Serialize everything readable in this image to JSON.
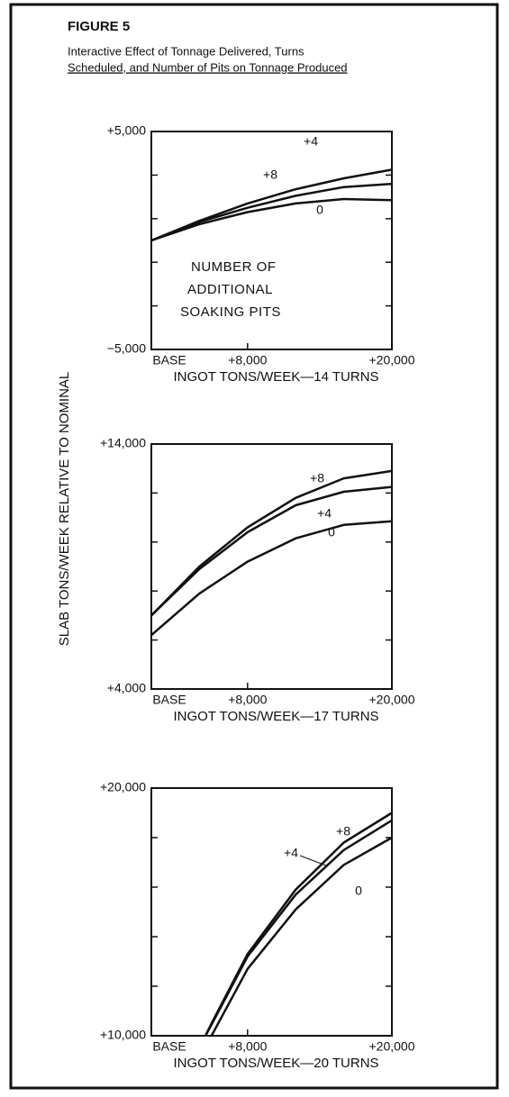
{
  "header": {
    "figure": "FIGURE 5",
    "title_lines": [
      "Interactive Effect of Tonnage Delivered, Turns",
      "Scheduled, and Number of Pits on Tonnage Produced"
    ]
  },
  "ylabel": "SLAB TONS/WEEK RELATIVE TO NOMINAL",
  "chart_data": [
    {
      "type": "line",
      "xlabel": "INGOT TONS/WEEK—14 TURNS",
      "x": [
        0,
        4000,
        8000,
        12000,
        16000,
        20000
      ],
      "xlim": [
        0,
        20000
      ],
      "xticks": [
        {
          "value": 0,
          "label": "BASE"
        },
        {
          "value": 8000,
          "label": "+8,000"
        },
        {
          "value": 20000,
          "label": "+20,000"
        }
      ],
      "ylim": [
        -5000,
        5000
      ],
      "yticks": [
        {
          "value": -5000,
          "label": "−5,000"
        },
        {
          "value": 5000,
          "label": "+5,000"
        }
      ],
      "yminorticks": [
        -3000,
        -1000,
        1000,
        3000
      ],
      "annotation_lines": [
        "NUMBER OF",
        "ADDITIONAL",
        "SOAKING PITS"
      ],
      "series": [
        {
          "name": "0",
          "color": "#111111",
          "values": [
            0,
            750,
            1300,
            1700,
            1900,
            1850
          ]
        },
        {
          "name": "+4",
          "color": "#111111",
          "values": [
            0,
            850,
            1500,
            2050,
            2450,
            2600
          ]
        },
        {
          "name": "+8",
          "color": "#111111",
          "values": [
            0,
            900,
            1700,
            2350,
            2850,
            3250
          ]
        }
      ]
    },
    {
      "type": "line",
      "xlabel": "INGOT TONS/WEEK—17 TURNS",
      "x": [
        0,
        4000,
        8000,
        12000,
        16000,
        20000
      ],
      "xlim": [
        0,
        20000
      ],
      "xticks": [
        {
          "value": 0,
          "label": "BASE"
        },
        {
          "value": 8000,
          "label": "+8,000"
        },
        {
          "value": 20000,
          "label": "+20,000"
        }
      ],
      "ylim": [
        4000,
        14000
      ],
      "yticks": [
        {
          "value": 4000,
          "label": "+4,000"
        },
        {
          "value": 14000,
          "label": "+14,000"
        }
      ],
      "yminorticks": [
        6000,
        8000,
        10000,
        12000
      ],
      "series": [
        {
          "name": "0",
          "color": "#111111",
          "values": [
            6200,
            7900,
            9200,
            10150,
            10700,
            10850
          ]
        },
        {
          "name": "+4",
          "color": "#111111",
          "values": [
            7000,
            8900,
            10400,
            11500,
            12050,
            12250
          ]
        },
        {
          "name": "+8",
          "color": "#111111",
          "values": [
            7000,
            9000,
            10600,
            11800,
            12600,
            12900
          ]
        }
      ]
    },
    {
      "type": "line",
      "xlabel": "INGOT TONS/WEEK—20 TURNS",
      "x": [
        4500,
        5000,
        8000,
        12000,
        16000,
        20000
      ],
      "xlim": [
        0,
        20000
      ],
      "xticks": [
        {
          "value": 0,
          "label": "BASE"
        },
        {
          "value": 8000,
          "label": "+8,000"
        },
        {
          "value": 20000,
          "label": "+20,000"
        }
      ],
      "ylim": [
        10000,
        20000
      ],
      "yticks": [
        {
          "value": 10000,
          "label": "+10,000"
        },
        {
          "value": 20000,
          "label": "+20,000"
        }
      ],
      "yminorticks": [
        12000,
        14000,
        16000,
        18000
      ],
      "series": [
        {
          "name": "0",
          "color": "#111111",
          "values": [
            null,
            10000,
            12700,
            15100,
            16900,
            18000
          ]
        },
        {
          "name": "+4",
          "color": "#111111",
          "values": [
            10000,
            10450,
            13200,
            15700,
            17500,
            18700
          ]
        },
        {
          "name": "+8",
          "color": "#111111",
          "values": [
            10000,
            10500,
            13300,
            15900,
            17800,
            19000
          ]
        }
      ]
    }
  ]
}
